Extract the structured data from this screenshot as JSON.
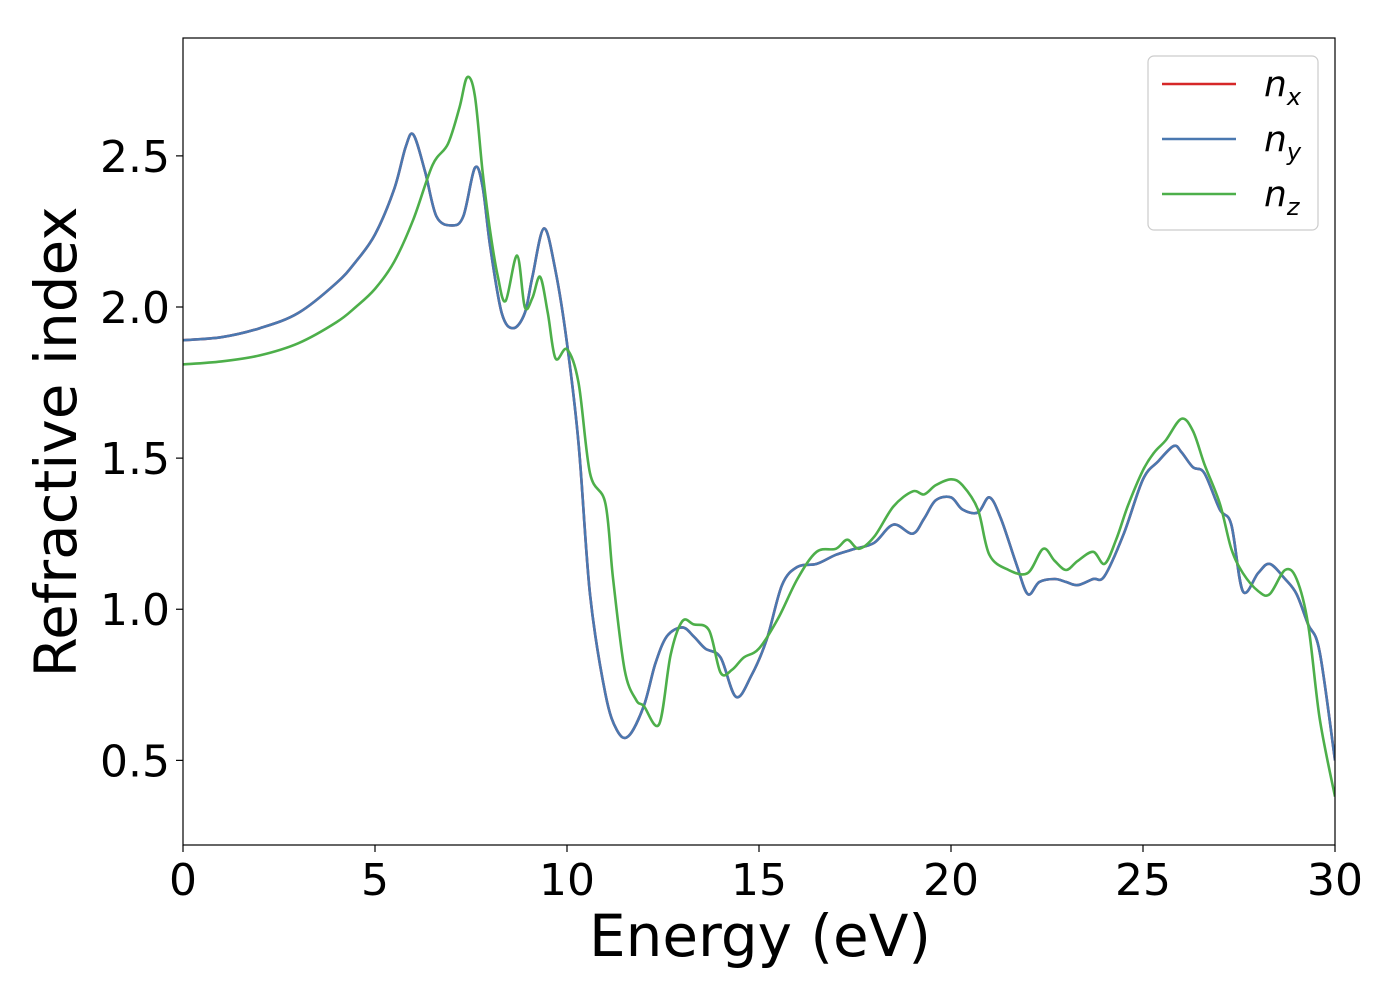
{
  "chart_data": {
    "type": "line",
    "title": "",
    "xlabel": "Energy (eV)",
    "ylabel": "Refractive index",
    "xlim": [
      0,
      30
    ],
    "ylim": [
      0.22,
      2.89
    ],
    "xticks": [
      0,
      5,
      10,
      15,
      20,
      25,
      30
    ],
    "yticks": [
      0.5,
      1.0,
      1.5,
      2.0,
      2.5
    ],
    "xtick_labels": [
      "0",
      "5",
      "10",
      "15",
      "20",
      "25",
      "30"
    ],
    "ytick_labels": [
      "0.5",
      "1.0",
      "1.5",
      "2.0",
      "2.5"
    ],
    "grid": false,
    "legend_position": "top-right",
    "series": [
      {
        "name": "n_x",
        "base": "n",
        "sub": "x",
        "color": "#d62728",
        "x": [
          0,
          1,
          2,
          3,
          4,
          4.5,
          5,
          5.5,
          5.8,
          6,
          6.3,
          6.6,
          7,
          7.3,
          7.6,
          7.8,
          8,
          8.3,
          8.6,
          8.9,
          9.1,
          9.4,
          9.7,
          10,
          10.3,
          10.6,
          11,
          11.3,
          11.6,
          12,
          12.3,
          12.6,
          13,
          13.3,
          13.6,
          14,
          14.4,
          14.8,
          15.2,
          15.6,
          16,
          16.5,
          17,
          17.5,
          18,
          18.5,
          19,
          19.3,
          19.6,
          20,
          20.3,
          20.7,
          21,
          21.3,
          21.7,
          22,
          22.3,
          22.7,
          23,
          23.3,
          23.7,
          24,
          24.5,
          25,
          25.4,
          25.8,
          26,
          26.3,
          26.6,
          27,
          27.3,
          27.6,
          28,
          28.3,
          28.7,
          29,
          29.3,
          29.6,
          30
        ],
        "y": [
          1.89,
          1.9,
          1.93,
          1.98,
          2.08,
          2.15,
          2.24,
          2.39,
          2.53,
          2.57,
          2.45,
          2.3,
          2.27,
          2.3,
          2.46,
          2.4,
          2.2,
          1.98,
          1.93,
          1.98,
          2.1,
          2.26,
          2.12,
          1.88,
          1.55,
          1.05,
          0.72,
          0.6,
          0.58,
          0.68,
          0.82,
          0.91,
          0.94,
          0.91,
          0.87,
          0.84,
          0.71,
          0.78,
          0.9,
          1.08,
          1.14,
          1.15,
          1.18,
          1.2,
          1.22,
          1.28,
          1.25,
          1.3,
          1.36,
          1.37,
          1.33,
          1.32,
          1.37,
          1.3,
          1.15,
          1.05,
          1.09,
          1.1,
          1.09,
          1.08,
          1.1,
          1.11,
          1.25,
          1.43,
          1.49,
          1.54,
          1.52,
          1.47,
          1.45,
          1.33,
          1.28,
          1.06,
          1.12,
          1.15,
          1.1,
          1.05,
          0.95,
          0.86,
          0.5
        ]
      },
      {
        "name": "n_y",
        "base": "n",
        "sub": "y",
        "color": "#4a78b0",
        "x": [
          0,
          1,
          2,
          3,
          4,
          4.5,
          5,
          5.5,
          5.8,
          6,
          6.3,
          6.6,
          7,
          7.3,
          7.6,
          7.8,
          8,
          8.3,
          8.6,
          8.9,
          9.1,
          9.4,
          9.7,
          10,
          10.3,
          10.6,
          11,
          11.3,
          11.6,
          12,
          12.3,
          12.6,
          13,
          13.3,
          13.6,
          14,
          14.4,
          14.8,
          15.2,
          15.6,
          16,
          16.5,
          17,
          17.5,
          18,
          18.5,
          19,
          19.3,
          19.6,
          20,
          20.3,
          20.7,
          21,
          21.3,
          21.7,
          22,
          22.3,
          22.7,
          23,
          23.3,
          23.7,
          24,
          24.5,
          25,
          25.4,
          25.8,
          26,
          26.3,
          26.6,
          27,
          27.3,
          27.6,
          28,
          28.3,
          28.7,
          29,
          29.3,
          29.6,
          30
        ],
        "y": [
          1.89,
          1.9,
          1.93,
          1.98,
          2.08,
          2.15,
          2.24,
          2.39,
          2.53,
          2.57,
          2.45,
          2.3,
          2.27,
          2.3,
          2.46,
          2.4,
          2.2,
          1.98,
          1.93,
          1.98,
          2.1,
          2.26,
          2.12,
          1.88,
          1.55,
          1.05,
          0.72,
          0.6,
          0.58,
          0.68,
          0.82,
          0.91,
          0.94,
          0.91,
          0.87,
          0.84,
          0.71,
          0.78,
          0.9,
          1.08,
          1.14,
          1.15,
          1.18,
          1.2,
          1.22,
          1.28,
          1.25,
          1.3,
          1.36,
          1.37,
          1.33,
          1.32,
          1.37,
          1.3,
          1.15,
          1.05,
          1.09,
          1.1,
          1.09,
          1.08,
          1.1,
          1.11,
          1.25,
          1.43,
          1.49,
          1.54,
          1.52,
          1.47,
          1.45,
          1.33,
          1.28,
          1.06,
          1.12,
          1.15,
          1.1,
          1.05,
          0.95,
          0.86,
          0.5
        ]
      },
      {
        "name": "n_z",
        "base": "n",
        "sub": "z",
        "color": "#4daf4a",
        "x": [
          0,
          1,
          2,
          3,
          4,
          4.5,
          5,
          5.5,
          6,
          6.5,
          6.9,
          7.2,
          7.4,
          7.6,
          7.8,
          8,
          8.2,
          8.4,
          8.7,
          8.9,
          9.1,
          9.3,
          9.5,
          9.7,
          10,
          10.3,
          10.6,
          11,
          11.2,
          11.5,
          11.8,
          12,
          12.4,
          12.7,
          13,
          13.3,
          13.7,
          14,
          14.3,
          14.6,
          15,
          15.5,
          16,
          16.5,
          17,
          17.3,
          17.6,
          18,
          18.5,
          19,
          19.3,
          19.6,
          20,
          20.3,
          20.7,
          21,
          21.5,
          22,
          22.4,
          22.7,
          23,
          23.3,
          23.7,
          24,
          24.3,
          24.6,
          25,
          25.3,
          25.6,
          26,
          26.3,
          26.6,
          27,
          27.3,
          27.6,
          28,
          28.3,
          28.7,
          29,
          29.3,
          29.6,
          30
        ],
        "y": [
          1.81,
          1.82,
          1.84,
          1.88,
          1.95,
          2.0,
          2.06,
          2.15,
          2.29,
          2.47,
          2.54,
          2.66,
          2.76,
          2.7,
          2.45,
          2.25,
          2.1,
          2.02,
          2.17,
          2.0,
          2.03,
          2.1,
          1.98,
          1.83,
          1.86,
          1.75,
          1.45,
          1.35,
          1.1,
          0.8,
          0.7,
          0.68,
          0.62,
          0.85,
          0.96,
          0.95,
          0.93,
          0.79,
          0.8,
          0.84,
          0.87,
          0.97,
          1.1,
          1.19,
          1.2,
          1.23,
          1.2,
          1.24,
          1.34,
          1.39,
          1.38,
          1.41,
          1.43,
          1.41,
          1.33,
          1.18,
          1.13,
          1.12,
          1.2,
          1.16,
          1.13,
          1.16,
          1.19,
          1.15,
          1.23,
          1.34,
          1.46,
          1.52,
          1.56,
          1.63,
          1.59,
          1.48,
          1.35,
          1.2,
          1.12,
          1.06,
          1.05,
          1.13,
          1.1,
          0.95,
          0.64,
          0.38
        ]
      }
    ]
  }
}
